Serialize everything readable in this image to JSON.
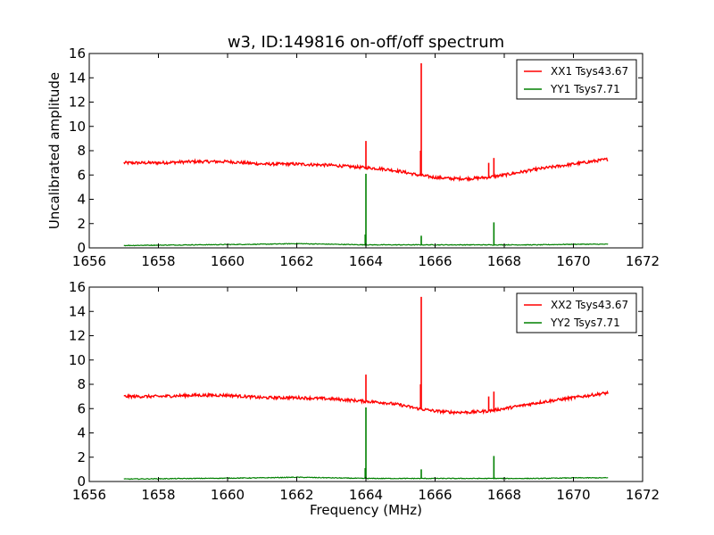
{
  "chart_data": [
    {
      "type": "line",
      "title": "w3, ID:149816 on-off/off spectrum",
      "xlabel": "",
      "ylabel": "Uncalibrated amplitude",
      "xlim": [
        1656,
        1672
      ],
      "ylim": [
        0,
        16
      ],
      "xticks": [
        1656,
        1658,
        1660,
        1662,
        1664,
        1666,
        1668,
        1670,
        1672
      ],
      "yticks": [
        0,
        2,
        4,
        6,
        8,
        10,
        12,
        14,
        16
      ],
      "legend_position": "top-right",
      "series": [
        {
          "name": "XX1 Tsys43.67",
          "color": "#ff0000",
          "x": [
            1657.0,
            1658.0,
            1659.0,
            1660.0,
            1661.0,
            1662.0,
            1663.0,
            1664.0,
            1664.5,
            1665.0,
            1665.5,
            1666.0,
            1666.5,
            1667.0,
            1667.5,
            1668.0,
            1669.0,
            1670.0,
            1671.0
          ],
          "y": [
            7.0,
            7.0,
            7.1,
            7.1,
            6.9,
            6.9,
            6.8,
            6.6,
            6.5,
            6.3,
            6.0,
            5.8,
            5.7,
            5.7,
            5.8,
            6.0,
            6.5,
            6.9,
            7.3
          ],
          "spikes": [
            {
              "x": 1664.0,
              "y": 8.8
            },
            {
              "x": 1665.6,
              "y": 15.2
            },
            {
              "x": 1665.58,
              "y": 8.0
            },
            {
              "x": 1667.55,
              "y": 7.0
            },
            {
              "x": 1667.7,
              "y": 7.4
            }
          ]
        },
        {
          "name": "YY1 Tsys7.71",
          "color": "#008000",
          "x": [
            1657.0,
            1659.0,
            1661.0,
            1662.0,
            1663.0,
            1664.0,
            1665.0,
            1666.0,
            1667.0,
            1668.0,
            1669.0,
            1670.0,
            1671.0
          ],
          "y": [
            0.2,
            0.25,
            0.3,
            0.35,
            0.3,
            0.25,
            0.25,
            0.25,
            0.25,
            0.25,
            0.25,
            0.3,
            0.3
          ],
          "spikes": [
            {
              "x": 1664.0,
              "y": 6.1
            },
            {
              "x": 1663.98,
              "y": 1.1
            },
            {
              "x": 1665.6,
              "y": 1.0
            },
            {
              "x": 1667.7,
              "y": 2.1
            }
          ]
        }
      ]
    },
    {
      "type": "line",
      "title": "",
      "xlabel": "Frequency (MHz)",
      "ylabel": "",
      "xlim": [
        1656,
        1672
      ],
      "ylim": [
        0,
        16
      ],
      "xticks": [
        1656,
        1658,
        1660,
        1662,
        1664,
        1666,
        1668,
        1670,
        1672
      ],
      "yticks": [
        0,
        2,
        4,
        6,
        8,
        10,
        12,
        14,
        16
      ],
      "legend_position": "top-right",
      "series": [
        {
          "name": "XX2 Tsys43.67",
          "color": "#ff0000",
          "x": [
            1657.0,
            1658.0,
            1659.0,
            1660.0,
            1661.0,
            1662.0,
            1663.0,
            1664.0,
            1664.5,
            1665.0,
            1665.5,
            1666.0,
            1666.5,
            1667.0,
            1667.5,
            1668.0,
            1669.0,
            1670.0,
            1671.0
          ],
          "y": [
            7.0,
            7.0,
            7.1,
            7.1,
            6.9,
            6.9,
            6.8,
            6.6,
            6.5,
            6.3,
            6.0,
            5.8,
            5.7,
            5.7,
            5.8,
            6.0,
            6.5,
            6.9,
            7.3
          ],
          "spikes": [
            {
              "x": 1664.0,
              "y": 8.8
            },
            {
              "x": 1665.6,
              "y": 15.2
            },
            {
              "x": 1665.58,
              "y": 8.0
            },
            {
              "x": 1667.55,
              "y": 7.0
            },
            {
              "x": 1667.7,
              "y": 7.4
            }
          ]
        },
        {
          "name": "YY2 Tsys7.71",
          "color": "#008000",
          "x": [
            1657.0,
            1659.0,
            1661.0,
            1662.0,
            1663.0,
            1664.0,
            1665.0,
            1666.0,
            1667.0,
            1668.0,
            1669.0,
            1670.0,
            1671.0
          ],
          "y": [
            0.2,
            0.25,
            0.3,
            0.35,
            0.3,
            0.25,
            0.25,
            0.25,
            0.25,
            0.25,
            0.25,
            0.3,
            0.3
          ],
          "spikes": [
            {
              "x": 1664.0,
              "y": 6.1
            },
            {
              "x": 1663.98,
              "y": 1.1
            },
            {
              "x": 1665.6,
              "y": 1.0
            },
            {
              "x": 1667.7,
              "y": 2.1
            }
          ]
        }
      ]
    }
  ]
}
